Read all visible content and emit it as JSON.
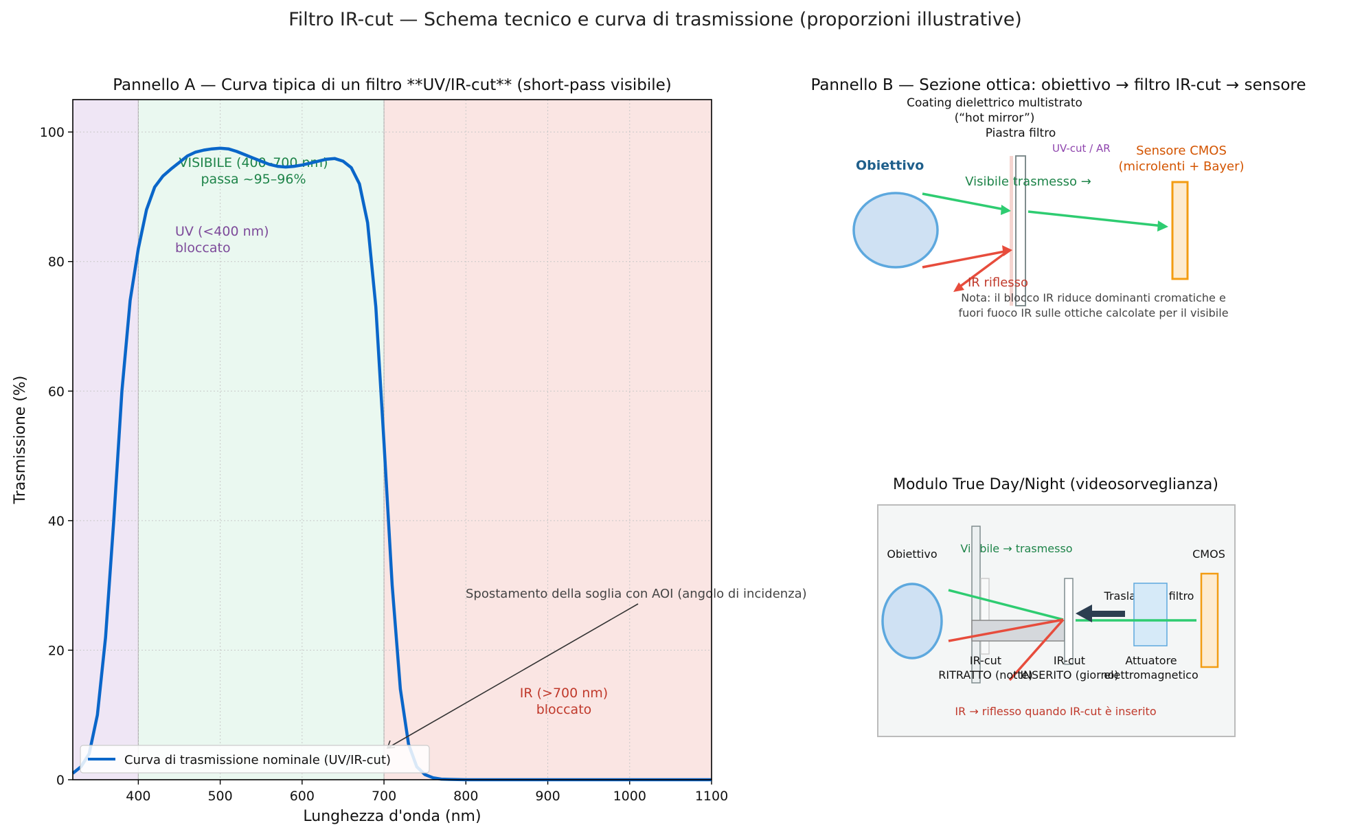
{
  "figure_title": "Filtro IR-cut — Schema tecnico e curva di trasmissione (proporzioni illustrative)",
  "chart_data": {
    "type": "line",
    "title": "Pannello A — Curva tipica di un filtro **UV/IR-cut** (short-pass visibile)",
    "xlabel": "Lunghezza d'onda (nm)",
    "ylabel": "Trasmissione (%)",
    "xlim": [
      320,
      1100
    ],
    "ylim": [
      0,
      105
    ],
    "xticks": [
      400,
      500,
      600,
      700,
      800,
      900,
      1000,
      1100
    ],
    "yticks": [
      0,
      20,
      40,
      60,
      80,
      100
    ],
    "grid": true,
    "legend_location": "lower-left",
    "bands": [
      {
        "name": "UV",
        "from": 320,
        "to": 400,
        "color": "#efe6f5"
      },
      {
        "name": "Visibile",
        "from": 400,
        "to": 700,
        "color": "#eaf8f0"
      },
      {
        "name": "IR",
        "from": 700,
        "to": 1100,
        "color": "#fae5e3"
      }
    ],
    "series": [
      {
        "name": "Curva di trasmissione nominale (UV/IR-cut)",
        "color": "#0a66c9",
        "x": [
          320,
          330,
          340,
          350,
          360,
          370,
          380,
          390,
          400,
          410,
          420,
          430,
          440,
          450,
          460,
          470,
          480,
          490,
          500,
          510,
          520,
          530,
          540,
          550,
          560,
          570,
          580,
          590,
          600,
          610,
          620,
          630,
          640,
          650,
          660,
          670,
          680,
          690,
          700,
          710,
          720,
          730,
          740,
          750,
          760,
          770,
          780,
          800,
          850,
          900,
          1000,
          1100
        ],
        "y": [
          1,
          2,
          4,
          10,
          22,
          40,
          60,
          74,
          82,
          88,
          91.5,
          93.2,
          94.3,
          95.3,
          96.3,
          96.9,
          97.2,
          97.4,
          97.5,
          97.4,
          97.0,
          96.5,
          96.0,
          95.5,
          95.0,
          94.7,
          94.6,
          94.7,
          94.9,
          95.2,
          95.5,
          95.8,
          95.9,
          95.5,
          94.5,
          92.0,
          86.0,
          73.0,
          52.0,
          30.0,
          14.0,
          5.5,
          2.0,
          0.8,
          0.3,
          0.1,
          0.05,
          0,
          0,
          0,
          0,
          0
        ]
      }
    ],
    "annotations": {
      "uv": [
        "UV (<400 nm)",
        "bloccato"
      ],
      "visible": [
        "VISIBILE (400–700 nm)",
        "passa ~95–96%"
      ],
      "ir": [
        "IR (>700 nm)",
        "bloccato"
      ],
      "aoi": "Spostamento della soglia con AOI (angolo di incidenza)"
    }
  },
  "panel_b": {
    "title": "Pannello B — Sezione ottica: obiettivo → filtro IR-cut → sensore",
    "coating_label": [
      "Coating dielettrico multistrato",
      "(“hot mirror”)"
    ],
    "plate_label": "Piastra filtro",
    "uvcut_label": "UV-cut / AR",
    "lens_label": "Obiettivo",
    "sensor_label": [
      "Sensore CMOS",
      "(microlenti + Bayer)"
    ],
    "visible_label": "Visibile trasmesso →",
    "ir_label": "IR riflesso",
    "note": [
      "Nota: il blocco IR riduce dominanti cromatiche e",
      "fuori fuoco IR sulle ottiche calcolate per il visibile"
    ],
    "colors": {
      "lens": "#5da8de",
      "lens_fill": "#cfe1f3",
      "sensor": "#f39c12",
      "sensor_fill": "#fdebd0",
      "visible": "#2ecc71",
      "ir": "#e74c3c"
    }
  },
  "panel_c": {
    "title": "Modulo True Day/Night (videosorveglianza)",
    "lens_label": "Obiettivo",
    "cmos_label": "CMOS",
    "visible_label": "Visibile → trasmesso",
    "translation_label": "Traslazione filtro",
    "retracted_label": [
      "IR-cut",
      "RITRATTO (notte)"
    ],
    "inserted_label": [
      "IR-cut",
      "INSERITO (giorno)"
    ],
    "actuator_label": [
      "Attuatore",
      "elettromagnetico"
    ],
    "ir_note": "IR → riflesso quando IR-cut è inserito"
  }
}
